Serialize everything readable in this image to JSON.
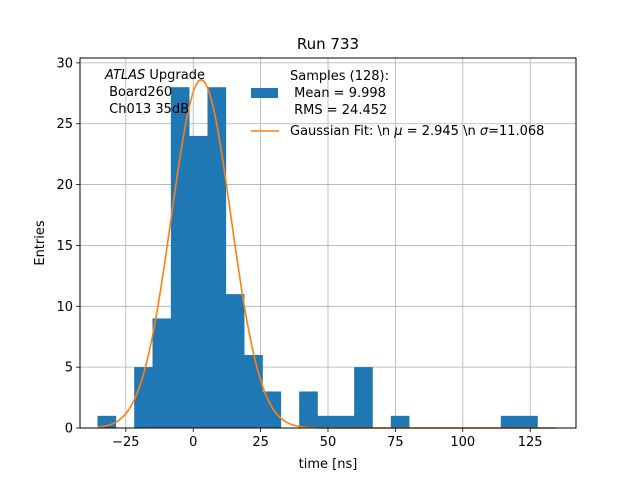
{
  "chart_data": {
    "type": "bar",
    "title": "Run 733",
    "xlabel": "time [ns]",
    "ylabel": "Entries",
    "xlim": [
      -42,
      142
    ],
    "ylim": [
      0,
      30.4
    ],
    "xticks": [
      -25,
      0,
      25,
      50,
      75,
      100,
      125
    ],
    "xtick_labels": [
      "−25",
      "0",
      "25",
      "50",
      "75",
      "100",
      "125"
    ],
    "yticks": [
      0,
      5,
      10,
      15,
      20,
      25,
      30
    ],
    "ytick_labels": [
      "0",
      "5",
      "10",
      "15",
      "20",
      "25",
      "30"
    ],
    "grid": true,
    "legend_position": "top-right",
    "histogram": {
      "bin_edges": [
        -35.5,
        -28.7,
        -21.9,
        -15.1,
        -8.3,
        -1.5,
        5.3,
        12.1,
        18.9,
        25.7,
        32.5,
        39.3,
        46.1,
        52.9,
        59.7,
        66.5,
        73.3,
        80.1,
        86.9,
        93.7,
        100.5,
        107.3,
        114.1,
        120.9,
        127.7,
        134.5
      ],
      "counts": [
        1,
        0,
        5,
        9,
        28,
        24,
        28,
        11,
        6,
        3,
        0,
        3,
        1,
        1,
        5,
        0,
        1,
        0,
        0,
        0,
        0,
        0,
        1,
        1,
        0
      ],
      "color": "#1f77b4"
    },
    "gaussian_fit": {
      "mu": 2.945,
      "sigma": 11.068,
      "amplitude": 28.6,
      "color": "#ff7f0e"
    },
    "legend": {
      "hist_line1": "Samples (128):",
      "hist_line2": " Mean = 9.998",
      "hist_line3": " RMS = 24.452",
      "fit_prefix": "Gaussian Fit: \\n ",
      "fit_mu_symbol": "μ",
      "fit_mid": " = 2.945 \\n ",
      "fit_sigma_symbol": "σ",
      "fit_suffix": "=11.068"
    },
    "annotation": {
      "line1_italic": "ATLAS",
      "line1_rest": " Upgrade",
      "line2": " Board260",
      "line3": " Ch013 35dB"
    }
  }
}
